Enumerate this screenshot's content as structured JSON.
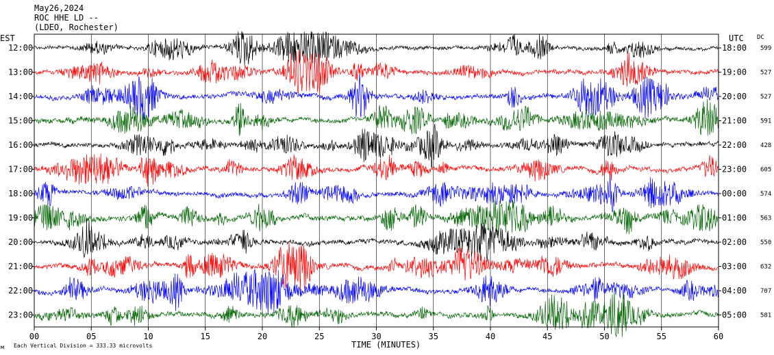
{
  "header": {
    "date": "May26,2024",
    "station": "ROC HHE LD --",
    "location": "(LDEO, Rochester)"
  },
  "chart_data": {
    "type": "line",
    "title": "",
    "xlabel": "TIME (MINUTES)",
    "left_axis_title": "EST",
    "right_axis_title": "UTC",
    "dc_title": "DC",
    "xlim": [
      0,
      60
    ],
    "x_ticks": [
      "00",
      "05",
      "10",
      "15",
      "20",
      "25",
      "30",
      "35",
      "40",
      "45",
      "50",
      "55",
      "60"
    ],
    "grid": "vertical every 5 minutes",
    "trace_colors": [
      "#000000",
      "#ff0000",
      "#0000ff",
      "#006400"
    ],
    "rows": [
      {
        "est": "12:00",
        "utc": "18:00",
        "dc": "599",
        "amplitude": 0.7
      },
      {
        "est": "13:00",
        "utc": "19:00",
        "dc": "527",
        "amplitude": 0.85
      },
      {
        "est": "14:00",
        "utc": "20:00",
        "dc": "527",
        "amplitude": 0.95
      },
      {
        "est": "15:00",
        "utc": "21:00",
        "dc": "591",
        "amplitude": 1.0
      },
      {
        "est": "16:00",
        "utc": "22:00",
        "dc": "428",
        "amplitude": 0.85
      },
      {
        "est": "17:00",
        "utc": "23:00",
        "dc": "605",
        "amplitude": 0.9
      },
      {
        "est": "18:00",
        "utc": "00:00",
        "dc": "574",
        "amplitude": 0.9
      },
      {
        "est": "19:00",
        "utc": "01:00",
        "dc": "563",
        "amplitude": 1.0
      },
      {
        "est": "20:00",
        "utc": "02:00",
        "dc": "550",
        "amplitude": 0.9
      },
      {
        "est": "21:00",
        "utc": "03:00",
        "dc": "632",
        "amplitude": 0.95
      },
      {
        "est": "22:00",
        "utc": "04:00",
        "dc": "707",
        "amplitude": 0.95
      },
      {
        "est": "23:00",
        "utc": "05:00",
        "dc": "581",
        "amplitude": 0.95
      }
    ]
  },
  "footer": {
    "scale_note": "Each Vertical Division =  333.33 microvolts",
    "corner_mark": "м"
  }
}
